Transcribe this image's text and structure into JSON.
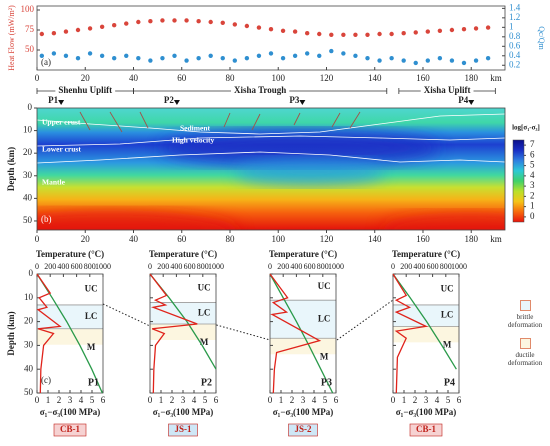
{
  "chart_data": [
    {
      "type": "scatter",
      "panel_label": "(a)",
      "ylabel": "Heat Flow (mW/m²)",
      "y2label": "Qc/Qm",
      "x": [
        2,
        7,
        12,
        17,
        22,
        27,
        32,
        37,
        42,
        47,
        52,
        57,
        62,
        67,
        72,
        77,
        82,
        87,
        92,
        97,
        102,
        107,
        112,
        117,
        122,
        127,
        132,
        137,
        142,
        147,
        152,
        157,
        162,
        167,
        172,
        177,
        182,
        187
      ],
      "series": [
        {
          "color": "#d9453b",
          "axis": "y",
          "values": [
            70,
            71,
            73,
            75,
            77,
            79,
            81,
            83,
            85,
            86,
            87,
            87,
            87,
            86,
            85,
            84,
            82,
            80,
            78,
            76,
            74,
            73,
            71,
            70,
            69,
            69,
            69,
            69,
            70,
            70,
            71,
            72,
            73,
            74,
            75,
            76,
            77,
            78
          ]
        },
        {
          "color": "#2f8fd0",
          "axis": "y2",
          "values": [
            0.4,
            0.45,
            0.4,
            0.35,
            0.45,
            0.4,
            0.35,
            0.4,
            0.35,
            0.3,
            0.35,
            0.4,
            0.3,
            0.35,
            0.4,
            0.35,
            0.3,
            0.35,
            0.4,
            0.45,
            0.35,
            0.4,
            0.45,
            0.4,
            0.5,
            0.45,
            0.4,
            0.35,
            0.3,
            0.35,
            0.3,
            0.25,
            0.3,
            0.35,
            0.3,
            0.25,
            0.3,
            0.35
          ]
        }
      ],
      "xlim": [
        0,
        194
      ],
      "xticks": [
        0,
        20,
        40,
        60,
        80,
        100,
        120,
        140,
        160,
        180
      ],
      "x_unit": "km",
      "ylim": [
        25,
        105
      ],
      "yticks": [
        50,
        75,
        100
      ],
      "y2lim": [
        0.1,
        1.45
      ],
      "y2ticks": [
        0.2,
        0.4,
        0.6,
        0.8,
        1.0,
        1.2,
        1.4
      ],
      "regions": [
        {
          "label": "Shenhu Uplift",
          "range": [
            0,
            40
          ]
        },
        {
          "label": "Xisha Trough",
          "range": [
            40,
            145
          ]
        },
        {
          "label": "Xisha Uplift",
          "range": [
            150,
            190
          ]
        }
      ],
      "profiles": [
        {
          "label": "P1",
          "x": 10
        },
        {
          "label": "P2",
          "x": 58
        },
        {
          "label": "P3",
          "x": 110
        },
        {
          "label": "P4",
          "x": 180
        }
      ]
    },
    {
      "type": "heatmap",
      "panel_label": "(b)",
      "ylabel": "Depth (km)",
      "xlim": [
        0,
        194
      ],
      "xticks": [
        0,
        20,
        40,
        60,
        80,
        100,
        120,
        140,
        160,
        180
      ],
      "x_unit": "km",
      "ylim": [
        0,
        54
      ],
      "yticks": [
        0,
        10,
        20,
        30,
        40,
        50
      ],
      "layer_labels": [
        "Upper crust",
        "Sediment",
        "High velocity",
        "Lower crust",
        "Mantle"
      ],
      "colorbar": {
        "label": "log[σ₁-σ₃]",
        "lim": [
          -0.5,
          7.5
        ],
        "ticks": [
          0,
          1,
          2,
          3,
          4,
          5,
          6,
          7
        ],
        "colors": [
          "#e8140c",
          "#f76b0c",
          "#f5c518",
          "#b8e02a",
          "#3fd16b",
          "#2cc9d6",
          "#2e7fe0",
          "#1a2fc4",
          "#0c0f8a"
        ]
      }
    },
    {
      "type": "profile",
      "panel_label": "(c)",
      "label": "P1",
      "well": "CB-1",
      "well_fill": "#f6d2d2",
      "xlabel_top": "Temperature (°C)",
      "xlim_top": [
        0,
        1000
      ],
      "xticks_top": [
        0,
        200,
        400,
        600,
        800,
        1000
      ],
      "xlabel": "σ₁−σ₃(100 MPa)",
      "xlim": [
        0,
        6
      ],
      "xticks": [
        0,
        1,
        2,
        3,
        4,
        5,
        6
      ],
      "ylabel": "Depth (km)",
      "ylim": [
        0,
        50
      ],
      "yticks": [
        0,
        10,
        20,
        30,
        40,
        50
      ],
      "layers": [
        "UC",
        "LC",
        "M"
      ],
      "boundaries": [
        13,
        23
      ],
      "temperature": {
        "color": "#2a9a4a",
        "depth": [
          0,
          10,
          20,
          30,
          40,
          50
        ],
        "values": [
          0,
          230,
          450,
          650,
          830,
          990
        ]
      },
      "strength": {
        "color": "#e0231b",
        "depth": [
          0,
          8,
          10,
          14,
          15,
          22,
          23,
          25,
          30,
          40,
          50
        ],
        "values": [
          0,
          1.2,
          0.2,
          0.9,
          0.1,
          2.1,
          0.1,
          1.5,
          0.6,
          0.35,
          0.3
        ]
      },
      "legend": [
        "brittle deformation",
        "ductile deformation"
      ]
    },
    {
      "type": "profile",
      "label": "P2",
      "well": "JS-1",
      "well_fill": "#cfe7f6",
      "xlabel_top": "Temperature (°C)",
      "xlim_top": [
        0,
        1000
      ],
      "xticks_top": [
        0,
        200,
        400,
        600,
        800,
        1000
      ],
      "xlabel": "σ₁−σ₃(100 MPa)",
      "xlim": [
        0,
        6
      ],
      "xticks": [
        0,
        1,
        2,
        3,
        4,
        5,
        6
      ],
      "layers": [
        "UC",
        "LC",
        "M"
      ],
      "boundaries": [
        12,
        21
      ],
      "temperature": {
        "color": "#2a9a4a",
        "depth": [
          0,
          10,
          20,
          30,
          40
        ],
        "values": [
          0,
          290,
          560,
          790,
          1000
        ]
      },
      "strength": {
        "color": "#e0231b",
        "depth": [
          0,
          9,
          11,
          13,
          14,
          21,
          23,
          25,
          30,
          40,
          50
        ],
        "values": [
          0,
          1.5,
          0.5,
          1.4,
          0.3,
          4.3,
          0.2,
          1.3,
          0.5,
          0.35,
          0.3
        ]
      }
    },
    {
      "type": "profile",
      "label": "P3",
      "well": "JS-2",
      "well_fill": "#cfe7f6",
      "xlabel_top": "Temperature (°C)",
      "xlim_top": [
        0,
        1000
      ],
      "xticks_top": [
        0,
        200,
        400,
        600,
        800,
        1000
      ],
      "xlabel": "σ₁−σ₃(100 MPa)",
      "xlim": [
        0,
        6
      ],
      "xticks": [
        0,
        1,
        2,
        3,
        4,
        5,
        6
      ],
      "layers": [
        "UC",
        "LC",
        "M"
      ],
      "boundaries": [
        11,
        27
      ],
      "temperature": {
        "color": "#2a9a4a",
        "depth": [
          0,
          10,
          20,
          30,
          40,
          50
        ],
        "values": [
          0,
          200,
          400,
          590,
          770,
          950
        ]
      },
      "strength": {
        "color": "#e0231b",
        "depth": [
          0,
          10,
          12,
          16,
          17,
          28,
          33,
          40,
          50
        ],
        "values": [
          0,
          1.6,
          0.3,
          1.5,
          0.2,
          4.5,
          0.6,
          0.4,
          0.3
        ]
      }
    },
    {
      "type": "profile",
      "label": "P4",
      "well": "CB-1",
      "well_fill": "#f6d2d2",
      "xlabel_top": "Temperature (°C)",
      "xlim_top": [
        0,
        1000
      ],
      "xticks_top": [
        0,
        200,
        400,
        600,
        800,
        1000
      ],
      "xlabel": "σ₁−σ₃(100 MPa)",
      "xlim": [
        0,
        6
      ],
      "xticks": [
        0,
        1,
        2,
        3,
        4,
        5,
        6
      ],
      "layers": [
        "UC",
        "LC",
        "M"
      ],
      "boundaries": [
        13,
        22
      ],
      "temperature": {
        "color": "#2a9a4a",
        "depth": [
          0,
          10,
          20,
          30,
          40
        ],
        "values": [
          0,
          260,
          510,
          740,
          960
        ]
      },
      "strength": {
        "color": "#e0231b",
        "depth": [
          0,
          9,
          11,
          14,
          16,
          22,
          24,
          27,
          35,
          50
        ],
        "values": [
          0,
          1.2,
          0.3,
          1.5,
          0.3,
          3.0,
          0.3,
          1.2,
          0.4,
          0.3
        ]
      }
    }
  ]
}
